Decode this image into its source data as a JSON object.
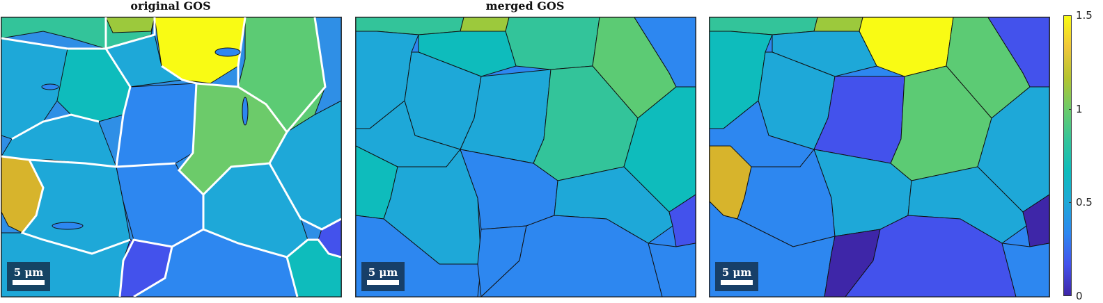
{
  "titles": {
    "left": "original GOS",
    "middle": "merged GOS",
    "right": ""
  },
  "scalebar": {
    "label": "5 μm"
  },
  "colorbar": {
    "ticks": [
      "0",
      "0.5",
      "1",
      "1.5"
    ],
    "tick_values": [
      0,
      0.5,
      1,
      1.5
    ],
    "range": [
      0,
      1.5
    ],
    "colormap": [
      "#3e26a8",
      "#4352ec",
      "#2d87f0",
      "#1ea8d8",
      "#0ebcbc",
      "#33c49a",
      "#6ccb6a",
      "#b4c430",
      "#f0c63a",
      "#f9fb14"
    ]
  },
  "chart_data": [
    {
      "type": "heatmap",
      "title": "original GOS",
      "description_values": "per-grain GOS values, color-coded 0 to 1.5",
      "grain_values": [
        0.85,
        0.95,
        1.5,
        1.05,
        0.65,
        0.75,
        0.5,
        1.05,
        0.55,
        0.7,
        1.25,
        0.6,
        0.75,
        0.4,
        0.7,
        0.35,
        0.5,
        0.75
      ],
      "clim": [
        0,
        1.5
      ]
    },
    {
      "type": "heatmap",
      "title": "merged GOS",
      "grain_values": [
        0.85,
        1.15,
        0.6,
        0.85,
        0.5,
        0.75,
        1.05,
        0.6,
        0.7,
        0.8,
        0.6,
        0.6,
        0.45,
        0.5,
        0.3
      ],
      "clim": [
        0,
        1.5
      ]
    },
    {
      "type": "heatmap",
      "title": "",
      "grain_values": [
        0.85,
        1.15,
        1.5,
        0.65,
        1.05,
        0.5,
        0.6,
        0.35,
        0.9,
        0.55,
        1.3,
        0.5,
        0.55,
        0.6,
        0.1,
        0.2,
        0.05
      ],
      "clim": [
        0,
        1.5
      ]
    }
  ]
}
